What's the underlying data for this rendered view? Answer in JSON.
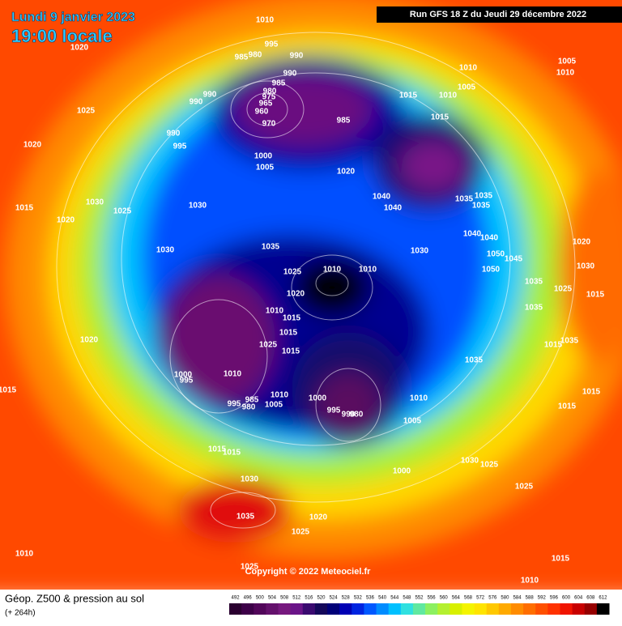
{
  "header": {
    "date": "Lundi 9 janvier 2023",
    "time": "19:00 locale",
    "run": "Run GFS 18 Z du Jeudi 29 décembre 2022"
  },
  "map": {
    "pressure_labels": [
      1010,
      1020,
      995,
      985,
      980,
      990,
      990,
      985,
      980,
      975,
      965,
      960,
      970,
      990,
      990,
      985,
      1025,
      990,
      995,
      1020,
      1000,
      1005,
      1020,
      1015,
      1010,
      1015,
      1010,
      1005,
      1005,
      1010,
      1040,
      1040,
      1035,
      1035,
      1035,
      1030,
      1025,
      1030,
      1015,
      1020,
      1030,
      1035,
      1030,
      1040,
      1040,
      1050,
      1045,
      1050,
      1020,
      1030,
      1010,
      1010,
      1025,
      1020,
      1035,
      1025,
      1015,
      1035,
      1010,
      1015,
      1015,
      1025,
      1015,
      1020,
      1035,
      1035,
      1015,
      1000,
      995,
      1010,
      1010,
      985,
      995,
      980,
      1005,
      1000,
      995,
      990,
      980,
      1010,
      1015,
      1015,
      1015,
      1005,
      1015,
      1015,
      1030,
      1025,
      1000,
      1030,
      1025,
      1035,
      1020,
      1025,
      1010,
      1015,
      1025,
      1010
    ],
    "copyright": "Copyright © 2022 Meteociel.fr"
  },
  "legend": {
    "title": "Géop. Z500 & pression au sol",
    "lead": "(+ 264h)",
    "scale": [
      492,
      496,
      500,
      504,
      508,
      512,
      516,
      520,
      524,
      528,
      532,
      536,
      540,
      544,
      548,
      552,
      556,
      560,
      564,
      568,
      572,
      576,
      580,
      584,
      588,
      592,
      596,
      600,
      604,
      608,
      612
    ],
    "colors": [
      "#2a0030",
      "#3d0048",
      "#52065a",
      "#64106c",
      "#76187e",
      "#6a1488",
      "#3a0a70",
      "#14085a",
      "#000078",
      "#0000b4",
      "#0024e0",
      "#0058ff",
      "#008cff",
      "#00c0ff",
      "#30e0e0",
      "#60e8a0",
      "#8cf060",
      "#b4f030",
      "#d8f000",
      "#f4f400",
      "#ffe400",
      "#ffc800",
      "#ffaa00",
      "#ff8c00",
      "#ff6e00",
      "#ff5000",
      "#ff3200",
      "#f01400",
      "#c80000",
      "#960000",
      "#000000"
    ]
  }
}
